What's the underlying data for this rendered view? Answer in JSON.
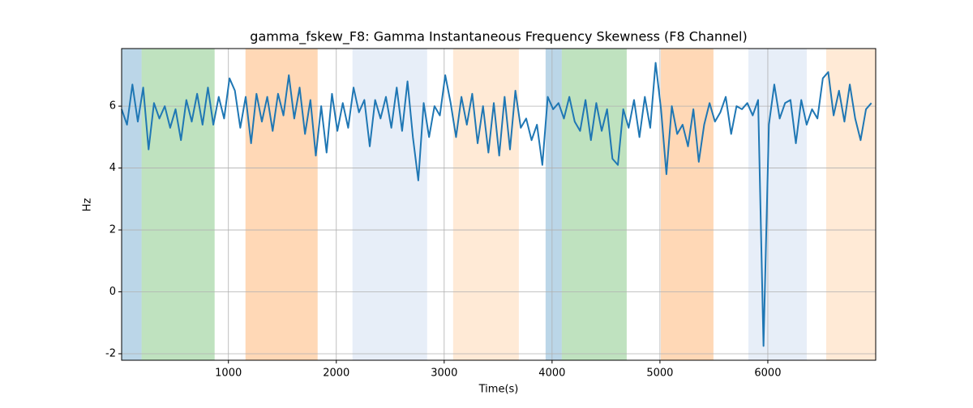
{
  "chart_data": {
    "type": "line",
    "title": "gamma_fskew_F8: Gamma Instantaneous Frequency Skewness (F8 Channel)",
    "x_label": "Time(s)",
    "y_label": "Hz",
    "xlim": [
      10,
      7000
    ],
    "ylim": [
      -2.21,
      7.86
    ],
    "xticks": [
      1000,
      2000,
      3000,
      4000,
      5000,
      6000
    ],
    "yticks": [
      -2,
      0,
      2,
      4,
      6
    ],
    "grid": true,
    "span_alpha": 0.3,
    "spans": [
      {
        "start": 10,
        "end": 195,
        "color": "#1f77b4"
      },
      {
        "start": 195,
        "end": 872,
        "color": "#2ca02c"
      },
      {
        "start": 1158,
        "end": 1827,
        "color": "#ff7f0e"
      },
      {
        "start": 2150,
        "end": 2842,
        "color": "#aec7e8"
      },
      {
        "start": 3083,
        "end": 3692,
        "color": "#ffbb78"
      },
      {
        "start": 3940,
        "end": 4090,
        "color": "#1f77b4"
      },
      {
        "start": 4090,
        "end": 4692,
        "color": "#2ca02c"
      },
      {
        "start": 5008,
        "end": 5496,
        "color": "#ff7f0e"
      },
      {
        "start": 5820,
        "end": 6361,
        "color": "#aec7e8"
      },
      {
        "start": 6541,
        "end": 7000,
        "color": "#ffbb78"
      }
    ],
    "x": [
      10,
      60,
      110,
      160,
      210,
      260,
      310,
      360,
      410,
      460,
      510,
      560,
      610,
      660,
      710,
      760,
      810,
      860,
      910,
      960,
      1010,
      1060,
      1110,
      1160,
      1210,
      1260,
      1310,
      1360,
      1410,
      1460,
      1510,
      1560,
      1610,
      1660,
      1710,
      1760,
      1810,
      1860,
      1910,
      1960,
      2010,
      2060,
      2110,
      2160,
      2210,
      2260,
      2310,
      2360,
      2410,
      2460,
      2510,
      2560,
      2610,
      2660,
      2710,
      2760,
      2810,
      2860,
      2910,
      2960,
      3010,
      3060,
      3110,
      3160,
      3210,
      3260,
      3310,
      3360,
      3410,
      3460,
      3510,
      3560,
      3610,
      3660,
      3710,
      3760,
      3810,
      3860,
      3910,
      3960,
      4010,
      4060,
      4110,
      4160,
      4210,
      4260,
      4310,
      4360,
      4410,
      4460,
      4510,
      4560,
      4610,
      4660,
      4710,
      4760,
      4810,
      4860,
      4910,
      4960,
      5010,
      5060,
      5110,
      5160,
      5210,
      5260,
      5310,
      5360,
      5410,
      5460,
      5510,
      5560,
      5610,
      5660,
      5710,
      5760,
      5810,
      5860,
      5910,
      5960,
      6010,
      6060,
      6110,
      6160,
      6210,
      6260,
      6310,
      6360,
      6410,
      6460,
      6510,
      6560,
      6610,
      6660,
      6710,
      6760,
      6810,
      6860,
      6910,
      6960
    ],
    "series": [
      {
        "color": "#1f77b4",
        "values": [
          5.9,
          5.4,
          6.7,
          5.5,
          6.6,
          4.6,
          6.1,
          5.6,
          6.0,
          5.3,
          5.9,
          4.9,
          6.2,
          5.5,
          6.4,
          5.4,
          6.6,
          5.4,
          6.3,
          5.6,
          6.9,
          6.5,
          5.3,
          6.3,
          4.8,
          6.4,
          5.5,
          6.3,
          5.2,
          6.4,
          5.7,
          7.0,
          5.6,
          6.6,
          5.1,
          6.2,
          4.4,
          6.0,
          4.5,
          6.4,
          5.2,
          6.1,
          5.3,
          6.6,
          5.8,
          6.2,
          4.7,
          6.2,
          5.6,
          6.3,
          5.3,
          6.6,
          5.2,
          6.8,
          5.0,
          3.6,
          6.1,
          5.0,
          6.0,
          5.7,
          7.0,
          6.1,
          5.0,
          6.3,
          5.4,
          6.4,
          4.8,
          6.0,
          4.5,
          6.1,
          4.4,
          6.3,
          4.6,
          6.5,
          5.3,
          5.6,
          4.9,
          5.4,
          4.1,
          6.3,
          5.9,
          6.1,
          5.6,
          6.3,
          5.5,
          5.2,
          6.2,
          4.9,
          6.1,
          5.2,
          5.9,
          4.3,
          4.1,
          5.9,
          5.3,
          6.2,
          5.0,
          6.3,
          5.3,
          7.4,
          5.9,
          3.8,
          6.0,
          5.1,
          5.4,
          4.7,
          5.9,
          4.2,
          5.4,
          6.1,
          5.5,
          5.8,
          6.3,
          5.1,
          6.0,
          5.9,
          6.1,
          5.7,
          6.2,
          -1.75,
          5.4,
          6.7,
          5.6,
          6.1,
          6.2,
          4.8,
          6.2,
          5.4,
          5.9,
          5.6,
          6.9,
          7.1,
          5.7,
          6.5,
          5.5,
          6.7,
          5.6,
          4.9,
          5.9,
          6.1
        ]
      }
    ]
  }
}
